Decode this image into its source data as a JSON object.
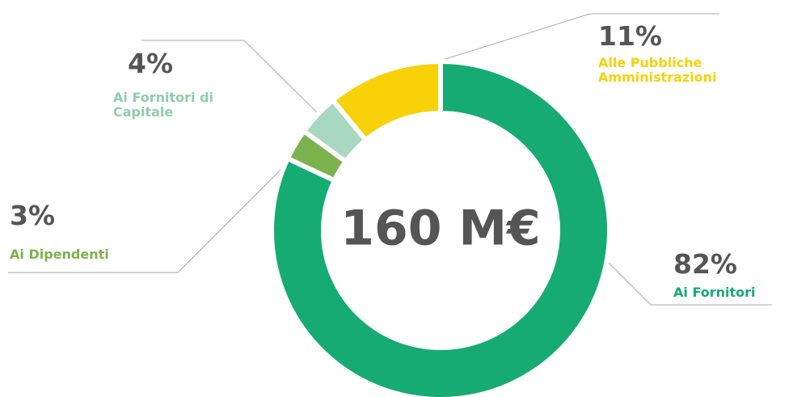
{
  "chart_data": {
    "type": "donut",
    "center_label": "160 M€",
    "categories": [
      "Ai Fornitori",
      "Ai Dipendenti",
      "Ai Fornitori di Capitale",
      "Alle Pubbliche Amministrazioni"
    ],
    "values": [
      82,
      3,
      4,
      11
    ],
    "value_labels": [
      "82%",
      "3%",
      "4%",
      "11%"
    ],
    "colors": [
      "#16ab73",
      "#7cb24d",
      "#a8d8bf",
      "#f9d109"
    ]
  }
}
